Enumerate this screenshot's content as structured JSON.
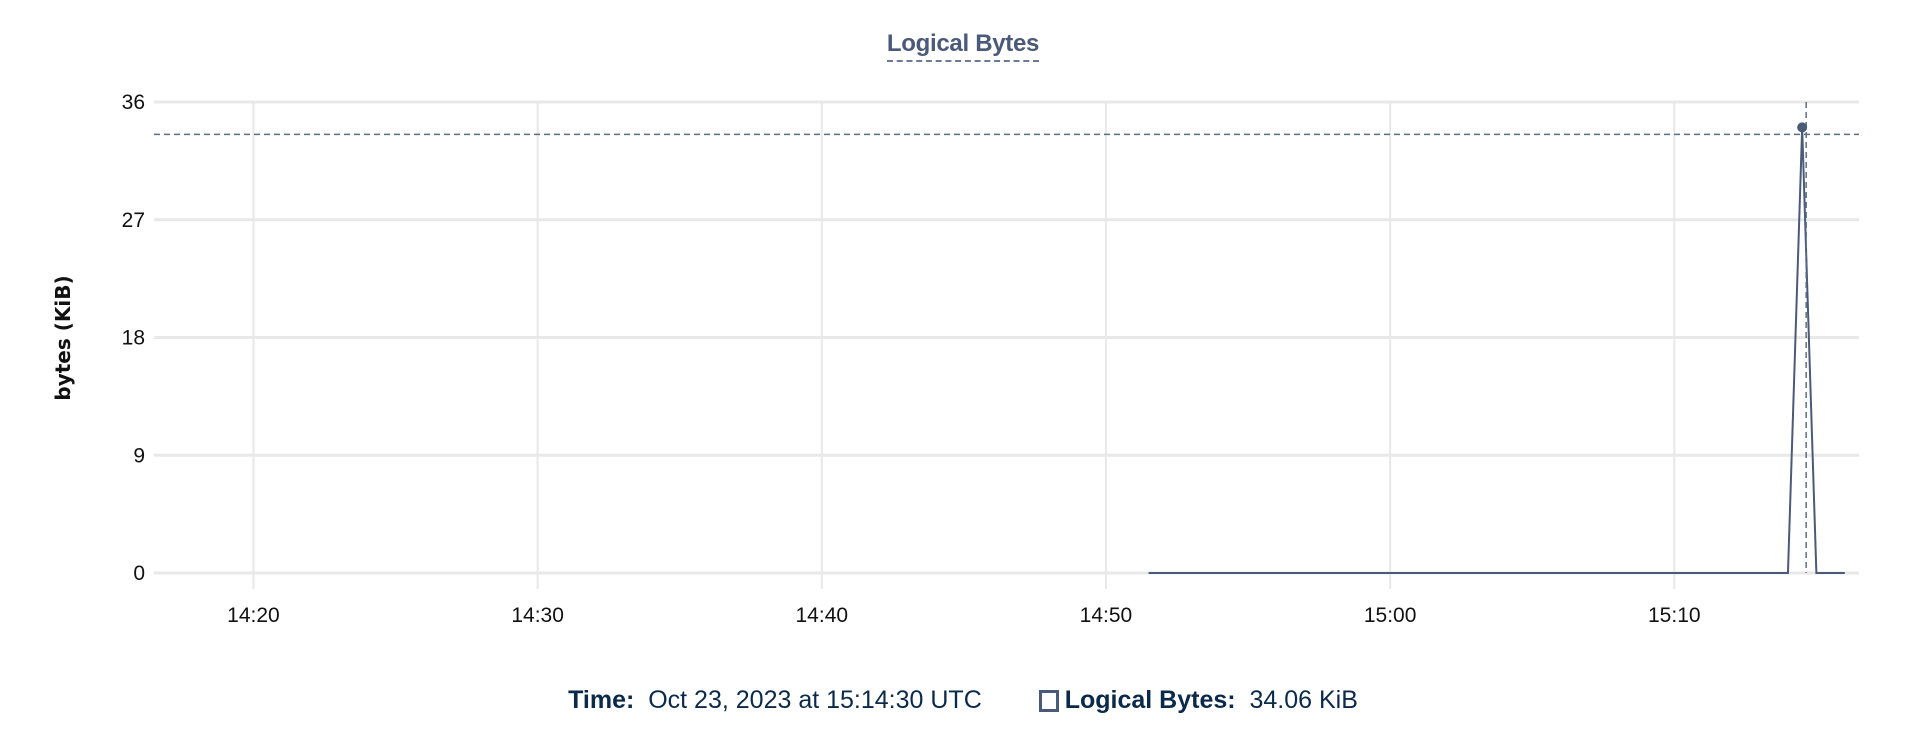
{
  "chart_data": {
    "type": "line",
    "title": "Logical Bytes",
    "ylabel": "bytes (KiB)",
    "xlabel": "",
    "ylim": [
      0,
      36
    ],
    "xlim": [
      "14:16:30",
      "15:16:30"
    ],
    "yticks": [
      "0",
      "9",
      "18",
      "27",
      "36"
    ],
    "xticks": [
      "14:20",
      "14:30",
      "14:40",
      "14:50",
      "15:00",
      "15:10"
    ],
    "grid": true,
    "series": [
      {
        "name": "Logical Bytes",
        "color": "#4a5a78",
        "x": [
          "14:51:30",
          "15:14:00",
          "15:14:30",
          "15:15:00",
          "15:16:00"
        ],
        "y": [
          0,
          0,
          34.06,
          0,
          0
        ]
      }
    ],
    "hover": {
      "time_label": "Time:",
      "time_value": "Oct 23, 2023 at 15:14:30 UTC",
      "series_label": "Logical Bytes:",
      "series_value": "34.06 KiB"
    }
  }
}
